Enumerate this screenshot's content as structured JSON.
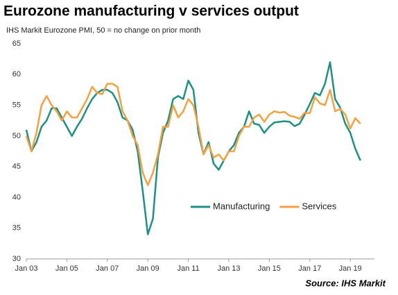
{
  "chart_data": {
    "type": "line",
    "title": "Eurozone manufacturing v services output",
    "subtitle": "IHS Markit  Eurozone PMI, 50 = no change on prior month",
    "source": "Source: IHS Markit",
    "categories": [
      "Jan 03",
      null,
      null,
      null,
      null,
      null,
      null,
      null,
      "Jan 05",
      null,
      null,
      null,
      null,
      null,
      null,
      null,
      "Jan 07",
      null,
      null,
      null,
      null,
      null,
      null,
      null,
      "Jan 09",
      null,
      null,
      null,
      null,
      null,
      null,
      null,
      "Jan 11",
      null,
      null,
      null,
      null,
      null,
      null,
      null,
      "Jan 13",
      null,
      null,
      null,
      null,
      null,
      null,
      null,
      "Jan 15",
      null,
      null,
      null,
      null,
      null,
      null,
      null,
      "Jan 17",
      null,
      null,
      null,
      null,
      null,
      null,
      null,
      "Jan 19",
      null,
      null
    ],
    "series": [
      {
        "name": "Manufacturing",
        "color": "#1a9183",
        "values": [
          51,
          47.5,
          49,
          51.5,
          52.5,
          54.5,
          54.5,
          53,
          51.5,
          50,
          51.5,
          52.8,
          54.5,
          56,
          57,
          57.5,
          57.5,
          57,
          55.5,
          53,
          52.5,
          51,
          47.5,
          41,
          34,
          36.5,
          46.5,
          50.5,
          52.5,
          56,
          56.5,
          56,
          59,
          57.5,
          50.5,
          47,
          49,
          45.5,
          44.5,
          46,
          47.5,
          48.5,
          50.5,
          51.5,
          54,
          52,
          51.8,
          50.5,
          51.5,
          52.2,
          52.3,
          52.4,
          52.3,
          51.6,
          52,
          53.5,
          55.2,
          57,
          56.6,
          58.5,
          62,
          56,
          54.6,
          52,
          50.5,
          47.9,
          46
        ]
      },
      {
        "name": "Services",
        "color": "#f5a040",
        "values": [
          50,
          47.5,
          50.5,
          55,
          56.5,
          55,
          54,
          52.5,
          54,
          53,
          53,
          54.5,
          56,
          58,
          57,
          56.8,
          58.5,
          58.5,
          58,
          54,
          52.5,
          50,
          48.5,
          44,
          42,
          44,
          47,
          51.5,
          51.5,
          55,
          53,
          54,
          56,
          55,
          51.5,
          47,
          48.5,
          46.5,
          47,
          46,
          47.5,
          47.5,
          50,
          51.5,
          51.5,
          53,
          53.5,
          52.3,
          53.5,
          54,
          53.8,
          53.9,
          53.3,
          53.1,
          52.8,
          53.8,
          53.7,
          56.3,
          55.3,
          55,
          57.5,
          54,
          54.4,
          53.5,
          51.2,
          52.9,
          52
        ]
      }
    ],
    "ylim": [
      30,
      65
    ],
    "yticks": [
      30,
      35,
      40,
      45,
      50,
      55,
      60,
      65
    ],
    "grid": false,
    "legend": "lower center"
  }
}
